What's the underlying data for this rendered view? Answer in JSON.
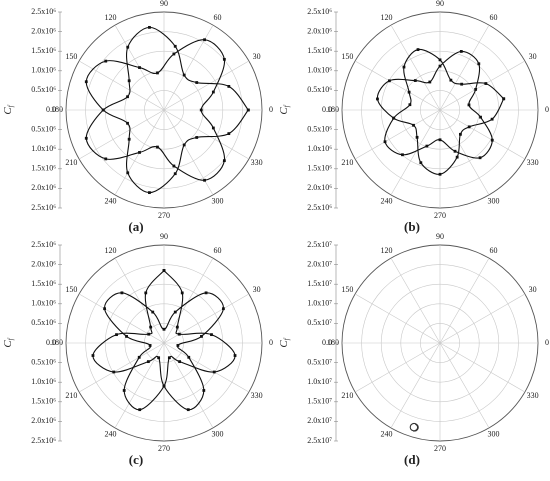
{
  "chart_data": [
    {
      "type": "polar",
      "label": "(a)",
      "ylabel": "C",
      "ylabel_sub": "f",
      "color": "#111111",
      "markers": true,
      "rlim": [
        0,
        2500000
      ],
      "rticks": [
        {
          "value": 0,
          "label": "0.0"
        },
        {
          "value": 500000,
          "label": "0.5x10⁶"
        },
        {
          "value": 1000000,
          "label": "1.0x10⁶"
        },
        {
          "value": 1500000,
          "label": "1.5x10⁶"
        },
        {
          "value": 2000000,
          "label": "2.0x10⁶"
        },
        {
          "value": 2500000,
          "label": "2.5x10⁶"
        }
      ],
      "thetaticks": [
        0,
        30,
        60,
        90,
        120,
        150,
        180,
        210,
        240,
        270,
        300,
        330
      ],
      "theta": [
        0,
        20,
        40,
        60,
        80,
        100,
        120,
        140,
        160,
        180,
        200,
        220,
        240,
        260,
        280,
        300,
        320,
        340,
        360,
        380,
        400,
        420,
        440,
        460,
        480,
        500,
        520,
        540,
        560,
        580,
        600,
        620,
        640,
        660,
        680,
        700,
        720
      ],
      "r": [
        2150000,
        1760000,
        1090000,
        1030000,
        1650000,
        2140000,
        1850000,
        1160000,
        990000,
        1550000,
        2110000,
        1940000,
        1250000,
        960000,
        1450000,
        2070000,
        2010000,
        1340000,
        950000,
        1340000,
        2010000,
        2070000,
        1450000,
        960000,
        1250000,
        1940000,
        2110000,
        1550000,
        990000,
        1160000,
        1850000,
        2140000,
        1650000,
        1030000,
        1090000,
        1760000,
        2150000
      ]
    },
    {
      "type": "polar",
      "label": "(b)",
      "ylabel": "C",
      "ylabel_sub": "f",
      "color": "#111111",
      "markers": true,
      "rlim": [
        0,
        2500000
      ],
      "rticks": [
        {
          "value": 0,
          "label": "0.0"
        },
        {
          "value": 500000,
          "label": "0.5x10⁶"
        },
        {
          "value": 1000000,
          "label": "1.0x10⁶"
        },
        {
          "value": 1500000,
          "label": "1.5x10⁶"
        },
        {
          "value": 2000000,
          "label": "2.0x10⁶"
        },
        {
          "value": 2500000,
          "label": "2.5x10⁶"
        }
      ],
      "thetaticks": [
        0,
        30,
        60,
        90,
        120,
        150,
        180,
        210,
        240,
        270,
        300,
        330
      ],
      "theta": [
        10,
        30,
        50,
        70,
        90,
        110,
        130,
        150,
        170,
        190,
        210,
        230,
        250,
        270,
        290,
        310,
        330,
        350,
        370,
        390,
        410,
        430,
        450,
        470,
        490,
        510,
        530,
        550,
        570,
        590,
        610,
        630,
        650,
        670,
        690,
        710,
        730
      ],
      "r": [
        1650000,
        1350000,
        860000,
        810000,
        1280000,
        1640000,
        1430000,
        910000,
        780000,
        1200000,
        1620000,
        1490000,
        980000,
        760000,
        1120000,
        1590000,
        1540000,
        1050000,
        750000,
        1050000,
        1540000,
        1590000,
        1120000,
        760000,
        980000,
        1490000,
        1620000,
        1200000,
        780000,
        910000,
        1430000,
        1640000,
        1280000,
        810000,
        860000,
        1350000,
        1650000
      ]
    },
    {
      "type": "polar",
      "label": "(c)",
      "ylabel": "C",
      "ylabel_sub": "f",
      "color": "#111111",
      "markers": true,
      "rlim": [
        0,
        2500000
      ],
      "rticks": [
        {
          "value": 0,
          "label": "0.0"
        },
        {
          "value": 500000,
          "label": "0.5x10⁶"
        },
        {
          "value": 1000000,
          "label": "1.0x10⁶"
        },
        {
          "value": 1500000,
          "label": "1.5x10⁶"
        },
        {
          "value": 2000000,
          "label": "2.0x10⁶"
        },
        {
          "value": 2500000,
          "label": "2.5x10⁶"
        }
      ],
      "thetaticks": [
        0,
        30,
        60,
        90,
        120,
        150,
        180,
        210,
        240,
        270,
        300,
        330
      ],
      "theta": [
        90,
        110,
        130,
        150,
        170,
        190,
        210,
        230,
        250,
        270,
        290,
        310,
        330,
        350,
        370,
        390,
        410,
        430,
        450,
        470,
        490,
        510,
        530,
        550,
        570,
        590,
        610,
        630,
        650,
        670,
        690,
        710,
        730,
        750,
        770,
        790,
        810
      ],
      "r": [
        1850000,
        1360000,
        530000,
        450000,
        1230000,
        1840000,
        1480000,
        620000,
        400000,
        1100000,
        1810000,
        1580000,
        730000,
        360000,
        970000,
        1750000,
        1670000,
        840000,
        350000,
        840000,
        1670000,
        1750000,
        970000,
        360000,
        730000,
        1580000,
        1810000,
        1100000,
        400000,
        620000,
        1480000,
        1840000,
        1230000,
        450000,
        530000,
        1360000,
        1850000
      ]
    },
    {
      "type": "polar",
      "label": "(d)",
      "ylabel": "C",
      "ylabel_sub": "f",
      "color": "#333333",
      "markers": false,
      "rlim": [
        0,
        25000000
      ],
      "rticks": [
        {
          "value": 0,
          "label": "0.0"
        },
        {
          "value": 5000000,
          "label": "0.5x10⁷"
        },
        {
          "value": 10000000,
          "label": "1.0x10⁷"
        },
        {
          "value": 15000000,
          "label": "1.5x10⁷"
        },
        {
          "value": 20000000,
          "label": "2.0x10⁷"
        },
        {
          "value": 25000000,
          "label": "2.5x10⁷"
        }
      ],
      "thetaticks": [
        0,
        30,
        60,
        90,
        120,
        150,
        180,
        210,
        240,
        270,
        300,
        330
      ],
      "theta": [
        253,
        254.8,
        255.6,
        254.9,
        253,
        251.1,
        250.4,
        251.2,
        253,
        254.5,
        255.2,
        254.6,
        253
      ],
      "r": [
        23500000,
        23200000,
        22500000,
        21800000,
        21500000,
        21800000,
        22500000,
        23200000,
        23400000,
        23100000,
        22500000,
        21900000,
        21600000
      ]
    }
  ]
}
